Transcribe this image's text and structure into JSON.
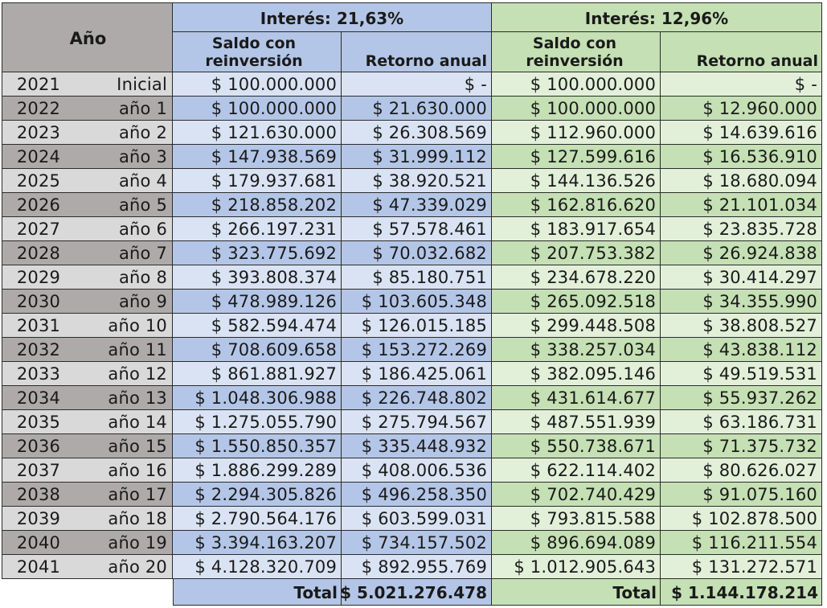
{
  "header": {
    "year_col": "Año",
    "group_a": {
      "title": "Interés: 21,63%",
      "col1": [
        "Saldo con",
        "reinversión"
      ],
      "col2": "Retorno anual"
    },
    "group_b": {
      "title": "Interés: 12,96%",
      "col1": [
        "Saldo con",
        "reinversión"
      ],
      "col2": "Retorno anual"
    }
  },
  "colors": {
    "year_light": "#d9d9d9",
    "year_dark": "#aeaaaa",
    "blue_header": "#b4c6e7",
    "blue_light": "#dae3f3",
    "blue_dark": "#b4c6e7",
    "green_header": "#c5e0b4",
    "green_light": "#e2f0d9",
    "green_dark": "#c5e0b4"
  },
  "rows": [
    {
      "year": "2021",
      "label": "Inicial",
      "a_saldo": "$ 100.000.000",
      "a_ret": "$ -",
      "b_saldo": "$ 100.000.000",
      "b_ret": "$ -"
    },
    {
      "year": "2022",
      "label": "año 1",
      "a_saldo": "$ 100.000.000",
      "a_ret": "$ 21.630.000",
      "b_saldo": "$ 100.000.000",
      "b_ret": "$ 12.960.000"
    },
    {
      "year": "2023",
      "label": "año 2",
      "a_saldo": "$ 121.630.000",
      "a_ret": "$ 26.308.569",
      "b_saldo": "$ 112.960.000",
      "b_ret": "$ 14.639.616"
    },
    {
      "year": "2024",
      "label": "año 3",
      "a_saldo": "$ 147.938.569",
      "a_ret": "$ 31.999.112",
      "b_saldo": "$ 127.599.616",
      "b_ret": "$ 16.536.910"
    },
    {
      "year": "2025",
      "label": "año 4",
      "a_saldo": "$ 179.937.681",
      "a_ret": "$ 38.920.521",
      "b_saldo": "$ 144.136.526",
      "b_ret": "$ 18.680.094"
    },
    {
      "year": "2026",
      "label": "año 5",
      "a_saldo": "$ 218.858.202",
      "a_ret": "$ 47.339.029",
      "b_saldo": "$ 162.816.620",
      "b_ret": "$ 21.101.034"
    },
    {
      "year": "2027",
      "label": "año 6",
      "a_saldo": "$ 266.197.231",
      "a_ret": "$ 57.578.461",
      "b_saldo": "$ 183.917.654",
      "b_ret": "$ 23.835.728"
    },
    {
      "year": "2028",
      "label": "año 7",
      "a_saldo": "$ 323.775.692",
      "a_ret": "$ 70.032.682",
      "b_saldo": "$ 207.753.382",
      "b_ret": "$ 26.924.838"
    },
    {
      "year": "2029",
      "label": "año 8",
      "a_saldo": "$ 393.808.374",
      "a_ret": "$ 85.180.751",
      "b_saldo": "$ 234.678.220",
      "b_ret": "$ 30.414.297"
    },
    {
      "year": "2030",
      "label": "año 9",
      "a_saldo": "$ 478.989.126",
      "a_ret": "$ 103.605.348",
      "b_saldo": "$ 265.092.518",
      "b_ret": "$ 34.355.990"
    },
    {
      "year": "2031",
      "label": "año 10",
      "a_saldo": "$ 582.594.474",
      "a_ret": "$ 126.015.185",
      "b_saldo": "$ 299.448.508",
      "b_ret": "$ 38.808.527"
    },
    {
      "year": "2032",
      "label": "año 11",
      "a_saldo": "$ 708.609.658",
      "a_ret": "$ 153.272.269",
      "b_saldo": "$ 338.257.034",
      "b_ret": "$ 43.838.112"
    },
    {
      "year": "2033",
      "label": "año 12",
      "a_saldo": "$ 861.881.927",
      "a_ret": "$ 186.425.061",
      "b_saldo": "$ 382.095.146",
      "b_ret": "$ 49.519.531"
    },
    {
      "year": "2034",
      "label": "año 13",
      "a_saldo": "$ 1.048.306.988",
      "a_ret": "$ 226.748.802",
      "b_saldo": "$ 431.614.677",
      "b_ret": "$ 55.937.262"
    },
    {
      "year": "2035",
      "label": "año 14",
      "a_saldo": "$ 1.275.055.790",
      "a_ret": "$ 275.794.567",
      "b_saldo": "$ 487.551.939",
      "b_ret": "$ 63.186.731"
    },
    {
      "year": "2036",
      "label": "año 15",
      "a_saldo": "$ 1.550.850.357",
      "a_ret": "$ 335.448.932",
      "b_saldo": "$ 550.738.671",
      "b_ret": "$ 71.375.732"
    },
    {
      "year": "2037",
      "label": "año 16",
      "a_saldo": "$ 1.886.299.289",
      "a_ret": "$ 408.006.536",
      "b_saldo": "$ 622.114.402",
      "b_ret": "$ 80.626.027"
    },
    {
      "year": "2038",
      "label": "año 17",
      "a_saldo": "$ 2.294.305.826",
      "a_ret": "$ 496.258.350",
      "b_saldo": "$ 702.740.429",
      "b_ret": "$ 91.075.160"
    },
    {
      "year": "2039",
      "label": "año 18",
      "a_saldo": "$ 2.790.564.176",
      "a_ret": "$ 603.599.031",
      "b_saldo": "$ 793.815.588",
      "b_ret": "$ 102.878.500"
    },
    {
      "year": "2040",
      "label": "año 19",
      "a_saldo": "$ 3.394.163.207",
      "a_ret": "$ 734.157.502",
      "b_saldo": "$ 896.694.089",
      "b_ret": "$ 116.211.554"
    },
    {
      "year": "2041",
      "label": "año 20",
      "a_saldo": "$ 4.128.320.709",
      "a_ret": "$ 892.955.769",
      "b_saldo": "$ 1.012.905.643",
      "b_ret": "$ 131.272.571"
    }
  ],
  "totals": {
    "a_label": "Total",
    "a_value": "$ 5.021.276.478",
    "b_label": "Total",
    "b_value": "$ 1.144.178.214"
  }
}
